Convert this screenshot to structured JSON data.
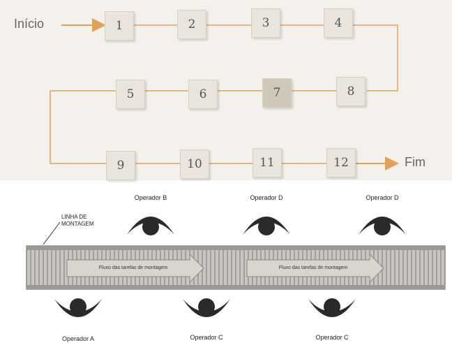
{
  "flow": {
    "start_label": "Início",
    "end_label": "Fim",
    "nodes": [
      "1",
      "2",
      "3",
      "4",
      "5",
      "6",
      "7",
      "8",
      "9",
      "10",
      "11",
      "12"
    ]
  },
  "assembly": {
    "line_label_1": "LINHA DE",
    "line_label_2": "MONTAGEM",
    "flow_text_1": "Fluxo das tarefas de montagem",
    "flow_text_2": "Fluxo das tarefas de montagem",
    "operators_top": [
      "Operador B",
      "Operador D",
      "Operador D"
    ],
    "operators_bottom": [
      "Operador A",
      "Operador C",
      "Operador C"
    ]
  },
  "colors": {
    "arrow": "#e0a25a",
    "line": "#e0a25a",
    "node": "#e9e5dc",
    "operator": "#2a2a2a"
  }
}
